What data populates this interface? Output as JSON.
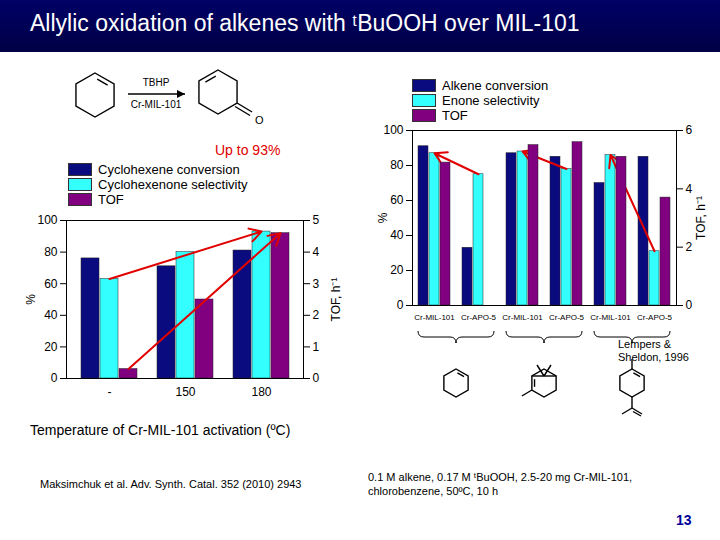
{
  "slide": {
    "title": "Allylic oxidation of alkenes with ᵗBuOOH over MIL-101",
    "page": "13",
    "scheme": {
      "reagent": "TBHP",
      "catalyst": "Cr-MIL-101",
      "atom": "O"
    },
    "highlight": "Up to 93%",
    "reference_left": "Maksimchuk et al. Adv. Synth. Catal. 352 (2010) 2943",
    "reference_right": "Lempers & Sheldon, 1996",
    "conditions": "0.1 M alkene, 0.17 M ᵗBuOOH, 2.5-20 mg Cr-MIL-101, chlorobenzene, 50ºC, 10 h"
  },
  "chart_data": [
    {
      "type": "bar",
      "xlabel": "Temperature of Cr-MIL-101 activation (ºC)",
      "ylabel": "%",
      "y2label": "TOF, h⁻¹",
      "categories": [
        "-",
        "150",
        "180"
      ],
      "series": [
        {
          "name": "Cyclohexene conversion",
          "color": "#0b0b80",
          "values": [
            76,
            71,
            81
          ]
        },
        {
          "name": "Cyclohexenone selectivity",
          "color": "#33ffff",
          "values": [
            63,
            80,
            93
          ]
        },
        {
          "name": "TOF",
          "color": "#800080",
          "axis": "y2",
          "values": [
            0.3,
            2.5,
            4.6
          ]
        }
      ],
      "ylim": [
        0,
        100
      ],
      "yticks": [
        0,
        20,
        40,
        60,
        80,
        100
      ],
      "y2lim": [
        0,
        5
      ],
      "y2ticks": [
        0,
        1,
        2,
        3,
        4,
        5
      ],
      "legend": "top"
    },
    {
      "type": "bar",
      "ylabel": "%",
      "y2label": "TOF, h⁻¹",
      "categories": [
        "Cr-MIL-101",
        "Cr-APO-5",
        "Cr-MIL-101",
        "Cr-APO-5",
        "Cr-MIL-101",
        "Cr-APO-5"
      ],
      "series": [
        {
          "name": "Alkene conversion",
          "color": "#0b0b80",
          "values": [
            91,
            33,
            87,
            85,
            70,
            85
          ]
        },
        {
          "name": "Enone selectivity",
          "color": "#33ffff",
          "values": [
            87,
            75,
            88,
            78,
            86,
            31
          ]
        },
        {
          "name": "TOF",
          "color": "#800080",
          "axis": "y2",
          "values": [
            4.9,
            null,
            5.5,
            5.6,
            5.1,
            3.7
          ]
        }
      ],
      "ylim": [
        0,
        100
      ],
      "yticks": [
        0,
        20,
        40,
        60,
        80,
        100
      ],
      "y2lim": [
        0,
        6
      ],
      "y2ticks": [
        0,
        2,
        4,
        6
      ],
      "legend": "top"
    }
  ]
}
